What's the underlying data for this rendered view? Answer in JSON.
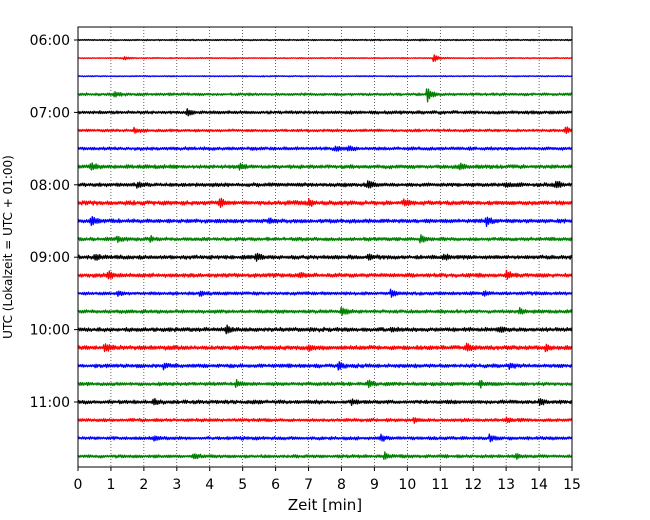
{
  "chart_data": {
    "type": "line",
    "title": "",
    "xlabel": "Zeit  [min]",
    "ylabel": "UTC (Lokalzeit = UTC + 01:00)",
    "xlim": [
      0,
      15
    ],
    "x_ticks": [
      "0",
      "1",
      "2",
      "3",
      "4",
      "5",
      "6",
      "7",
      "8",
      "9",
      "10",
      "11",
      "12",
      "13",
      "14",
      "15"
    ],
    "y_ticks": [
      "06:00",
      "07:00",
      "08:00",
      "09:00",
      "10:00",
      "11:00"
    ],
    "grid": "vertical dotted",
    "colors": [
      "#000000",
      "#ff0000",
      "#0000ff",
      "#008000"
    ],
    "traces": [
      {
        "start": "06:00",
        "color": "#000000",
        "noise": 0.5,
        "events": [
          [
            10.4,
            0.6
          ]
        ]
      },
      {
        "start": "06:15",
        "color": "#ff0000",
        "noise": 0.4,
        "events": [
          [
            1.4,
            2.0
          ],
          [
            10.8,
            4.5
          ]
        ]
      },
      {
        "start": "06:30",
        "color": "#0000ff",
        "noise": 0.4,
        "events": []
      },
      {
        "start": "06:45",
        "color": "#008000",
        "noise": 1.0,
        "events": [
          [
            1.1,
            3.0
          ],
          [
            10.6,
            7.5
          ]
        ]
      },
      {
        "start": "07:00",
        "color": "#000000",
        "noise": 1.2,
        "events": [
          [
            3.3,
            3.5
          ]
        ]
      },
      {
        "start": "07:15",
        "color": "#ff0000",
        "noise": 1.0,
        "events": [
          [
            1.7,
            3.0
          ],
          [
            14.8,
            4.0
          ]
        ]
      },
      {
        "start": "07:30",
        "color": "#0000ff",
        "noise": 1.2,
        "events": [
          [
            7.8,
            2.0
          ],
          [
            8.2,
            2.5
          ]
        ]
      },
      {
        "start": "07:45",
        "color": "#008000",
        "noise": 1.4,
        "events": [
          [
            0.4,
            3.5
          ],
          [
            4.9,
            3.0
          ],
          [
            11.6,
            3.5
          ]
        ]
      },
      {
        "start": "08:00",
        "color": "#000000",
        "noise": 1.4,
        "events": [
          [
            1.8,
            3.0
          ],
          [
            8.8,
            4.5
          ],
          [
            13.0,
            2.5
          ],
          [
            14.5,
            3.5
          ]
        ]
      },
      {
        "start": "08:15",
        "color": "#ff0000",
        "noise": 1.6,
        "events": [
          [
            4.3,
            4.5
          ],
          [
            7.0,
            3.0
          ],
          [
            9.9,
            3.0
          ]
        ]
      },
      {
        "start": "08:30",
        "color": "#0000ff",
        "noise": 1.5,
        "events": [
          [
            0.4,
            4.0
          ],
          [
            5.8,
            2.5
          ],
          [
            12.4,
            4.5
          ]
        ]
      },
      {
        "start": "08:45",
        "color": "#008000",
        "noise": 1.3,
        "events": [
          [
            1.2,
            2.5
          ],
          [
            2.2,
            2.5
          ],
          [
            10.4,
            3.5
          ]
        ]
      },
      {
        "start": "09:00",
        "color": "#000000",
        "noise": 1.5,
        "events": [
          [
            0.5,
            2.5
          ],
          [
            5.4,
            4.0
          ],
          [
            8.8,
            2.5
          ],
          [
            11.1,
            3.0
          ]
        ]
      },
      {
        "start": "09:15",
        "color": "#ff0000",
        "noise": 1.5,
        "events": [
          [
            0.9,
            4.0
          ],
          [
            6.7,
            2.5
          ],
          [
            13.0,
            4.0
          ]
        ]
      },
      {
        "start": "09:30",
        "color": "#0000ff",
        "noise": 1.2,
        "events": [
          [
            1.2,
            2.5
          ],
          [
            3.7,
            2.5
          ],
          [
            9.5,
            3.5
          ],
          [
            12.3,
            2.5
          ]
        ]
      },
      {
        "start": "09:45",
        "color": "#008000",
        "noise": 1.3,
        "events": [
          [
            8.0,
            4.5
          ],
          [
            13.4,
            2.5
          ]
        ]
      },
      {
        "start": "10:00",
        "color": "#000000",
        "noise": 1.5,
        "events": [
          [
            4.5,
            4.0
          ],
          [
            9.5,
            2.5
          ],
          [
            12.8,
            2.0
          ]
        ]
      },
      {
        "start": "10:15",
        "color": "#ff0000",
        "noise": 1.6,
        "events": [
          [
            0.8,
            4.0
          ],
          [
            7.0,
            3.0
          ],
          [
            11.8,
            3.5
          ],
          [
            14.2,
            2.5
          ]
        ]
      },
      {
        "start": "10:30",
        "color": "#0000ff",
        "noise": 1.4,
        "events": [
          [
            2.6,
            2.5
          ],
          [
            7.9,
            3.5
          ],
          [
            13.1,
            2.5
          ]
        ]
      },
      {
        "start": "10:45",
        "color": "#008000",
        "noise": 1.3,
        "events": [
          [
            4.8,
            3.5
          ],
          [
            8.8,
            3.5
          ],
          [
            12.2,
            3.0
          ]
        ]
      },
      {
        "start": "11:00",
        "color": "#000000",
        "noise": 1.4,
        "events": [
          [
            2.3,
            3.0
          ],
          [
            8.3,
            2.5
          ],
          [
            14.0,
            3.5
          ]
        ]
      },
      {
        "start": "11:15",
        "color": "#ff0000",
        "noise": 1.2,
        "events": [
          [
            10.2,
            3.0
          ],
          [
            13.0,
            2.5
          ]
        ]
      },
      {
        "start": "11:30",
        "color": "#0000ff",
        "noise": 1.2,
        "events": [
          [
            2.3,
            2.5
          ],
          [
            9.2,
            3.0
          ],
          [
            12.5,
            3.5
          ]
        ]
      },
      {
        "start": "11:45",
        "color": "#008000",
        "noise": 1.2,
        "events": [
          [
            3.5,
            2.5
          ],
          [
            9.3,
            3.5
          ],
          [
            13.3,
            2.5
          ]
        ]
      }
    ]
  }
}
